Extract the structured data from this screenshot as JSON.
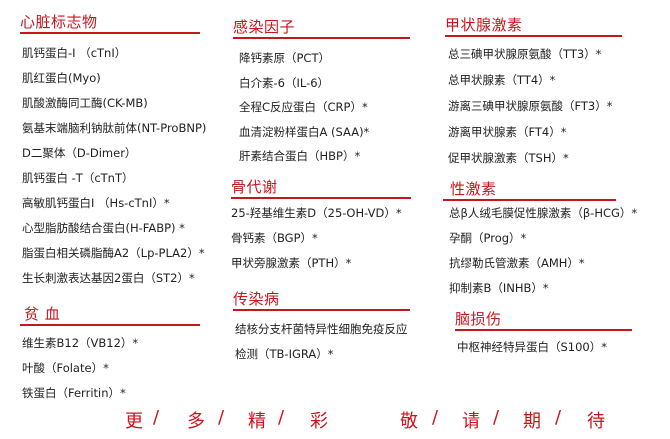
{
  "sections": [
    {
      "title": "心脏标志物",
      "items": [
        "肌钙蛋白-I （cTnI）",
        "肌红蛋白(Myo)",
        "肌酸激酶同工酶(CK-MB)",
        "氨基末端脑利钠肽前体(NT-ProBNP)",
        "D二聚体（D-Dimer）",
        "肌钙蛋白 -T（cTnT）",
        "高敏肌钙蛋白I （Hs-cTnI）*",
        "心型脂肪酸结合蛋白(H-FABP) *",
        "脂蛋白相关磷脂酶A2（Lp-PLA2）*",
        "生长刺激表达基因2蛋白（ST2）*"
      ]
    },
    {
      "title": "贫 血",
      "items": [
        "维生素B12（VB12）*",
        "叶酸（Folate）*",
        "铁蛋白（Ferritin）*"
      ]
    },
    {
      "title": "感染因子",
      "items": [
        "降钙素原（PCT）",
        "白介素-6（IL-6）",
        "全程C反应蛋白（CRP）*",
        "血清淀粉样蛋白A (SAA)*",
        "肝素结合蛋白（HBP）*"
      ]
    },
    {
      "title": "骨代谢",
      "items": [
        "25-羟基维生素D（25-OH-VD）*",
        "骨钙素（BGP）*",
        "甲状旁腺激素（PTH）*"
      ]
    },
    {
      "title": "传染病",
      "items": [
        "结核分支杆菌特异性细胞免疫反应",
        "检测（TB-IGRA）*"
      ]
    },
    {
      "title": "甲状腺激素",
      "items": [
        "总三碘甲状腺原氨酸（TT3）*",
        "总甲状腺素（TT4）*",
        "游离三碘甲状腺原氨酸（FT3）*",
        "游离甲状腺素（FT4）*",
        "促甲状腺激素（TSH）*"
      ]
    },
    {
      "title": "性激素",
      "items": [
        "总β人绒毛膜促性腺激素（β-HCG）*",
        "孕酮（Prog）*",
        "抗缪勒氏管激素（AMH）*",
        "抑制素B（INHB）*"
      ]
    },
    {
      "title": "脑损伤",
      "items": [
        "中枢神经特异蛋白（S100）*"
      ]
    }
  ],
  "footer": {
    "left": [
      "更",
      "多",
      "精",
      "彩"
    ],
    "right": [
      "敬",
      "请",
      "期",
      "待"
    ],
    "separator": "/"
  },
  "colors": {
    "accent": "#c8161d",
    "text": "#222222"
  }
}
